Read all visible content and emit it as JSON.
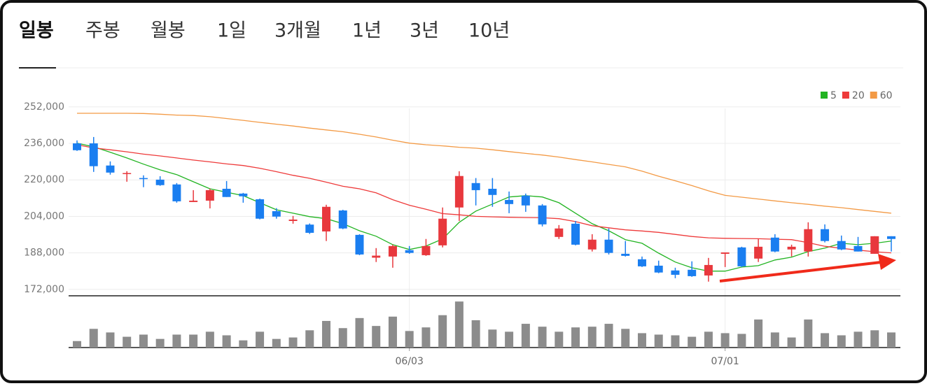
{
  "tabs": [
    "일봉",
    "주봉",
    "월봉",
    "1일",
    "3개월",
    "1년",
    "3년",
    "10년"
  ],
  "chart_data": {
    "type": "candlestick",
    "categories": [
      null,
      null,
      null,
      null,
      null,
      null,
      null,
      null,
      null,
      null,
      null,
      null,
      null,
      null,
      null,
      null,
      null,
      null,
      null,
      null,
      "06/03",
      null,
      null,
      null,
      null,
      null,
      null,
      null,
      null,
      null,
      null,
      null,
      null,
      null,
      null,
      null,
      null,
      null,
      null,
      "07/01",
      null,
      null,
      null,
      null,
      null,
      null,
      null,
      null,
      null,
      null
    ],
    "open": [
      236000,
      236000,
      226300,
      222600,
      220800,
      220100,
      218000,
      210300,
      210900,
      216100,
      214000,
      211500,
      206300,
      202000,
      200400,
      197400,
      206600,
      195900,
      185900,
      186400,
      189200,
      187000,
      191300,
      207900,
      218600,
      216100,
      211200,
      213100,
      208800,
      195000,
      200800,
      189500,
      193800,
      187600,
      185200,
      182400,
      180300,
      180600,
      178100,
      187600,
      190400,
      185500,
      194700,
      189500,
      188600,
      198400,
      193200,
      191000,
      187600,
      195300
    ],
    "high": [
      237300,
      238800,
      228100,
      223800,
      222000,
      221600,
      218600,
      215500,
      216100,
      219500,
      214300,
      211800,
      207600,
      204200,
      200900,
      209100,
      206900,
      196200,
      190100,
      191600,
      191000,
      194100,
      207900,
      223800,
      220800,
      220800,
      214900,
      214000,
      209400,
      200200,
      202000,
      196200,
      198700,
      193200,
      186400,
      184600,
      181500,
      184300,
      185800,
      188200,
      190700,
      194100,
      196200,
      191600,
      201400,
      200500,
      195600,
      195000,
      195300,
      195300
    ],
    "low": [
      232700,
      223500,
      222300,
      219200,
      216800,
      217400,
      210000,
      210300,
      207500,
      212500,
      210000,
      202700,
      203000,
      200800,
      196300,
      193200,
      198400,
      187000,
      184000,
      181500,
      187600,
      186700,
      190400,
      202000,
      208800,
      208200,
      205400,
      206000,
      199600,
      194100,
      191300,
      188600,
      187300,
      186400,
      181800,
      179100,
      176900,
      177500,
      175400,
      181800,
      181800,
      184000,
      188300,
      186400,
      186400,
      192600,
      189200,
      188600,
      187600,
      188600
    ],
    "close": [
      233000,
      226000,
      223200,
      223000,
      220500,
      217700,
      210600,
      210900,
      215500,
      212500,
      212800,
      203000,
      203900,
      202600,
      196800,
      208200,
      198700,
      187300,
      186800,
      191000,
      188000,
      191000,
      203000,
      221700,
      215500,
      213400,
      209400,
      208800,
      200500,
      198700,
      191600,
      193800,
      188000,
      186700,
      182100,
      179400,
      178400,
      177800,
      182700,
      188200,
      182100,
      190700,
      188600,
      190700,
      198400,
      193200,
      189500,
      188600,
      195300,
      194100
    ],
    "up_color": "#e8383d",
    "down_color": "#1a7ef0",
    "moving_averages": [
      {
        "name": "5",
        "color": "#22b422",
        "values": [
          236100,
          234500,
          232100,
          229600,
          226900,
          224400,
          222300,
          219200,
          216100,
          214600,
          213100,
          210000,
          206900,
          205400,
          203900,
          203000,
          200800,
          197700,
          195300,
          191600,
          189500,
          191000,
          194100,
          201400,
          206300,
          209400,
          212500,
          213100,
          212500,
          210000,
          205400,
          200800,
          197700,
          193800,
          192200,
          187900,
          184000,
          181500,
          180000,
          180000,
          181800,
          182400,
          184900,
          186100,
          188600,
          190100,
          192200,
          191600,
          192200,
          193200
        ]
      },
      {
        "name": "20",
        "color": "#ee3a3a",
        "values": [
          235400,
          234000,
          233200,
          232300,
          231300,
          230500,
          229600,
          228700,
          227900,
          227000,
          226300,
          225100,
          223600,
          222000,
          220700,
          219000,
          217200,
          216100,
          214300,
          211300,
          208900,
          207100,
          205200,
          204700,
          204000,
          203800,
          203600,
          203500,
          203400,
          203000,
          201700,
          199900,
          199000,
          198100,
          197600,
          197000,
          196100,
          195200,
          194600,
          194400,
          194300,
          194200,
          194000,
          193800,
          192500,
          190900,
          190000,
          189200,
          188500,
          188000
        ]
      },
      {
        "name": "60",
        "color": "#f39a45",
        "values": [
          249200,
          249200,
          249200,
          249200,
          249100,
          248800,
          248400,
          248200,
          247700,
          246900,
          246100,
          245200,
          244400,
          243600,
          242700,
          241900,
          241100,
          240000,
          238800,
          237400,
          236100,
          235400,
          234900,
          234300,
          233900,
          233200,
          232400,
          231600,
          230900,
          230000,
          228900,
          227900,
          226800,
          225700,
          223800,
          221600,
          219600,
          217500,
          215200,
          213200,
          212400,
          211600,
          210800,
          210000,
          209300,
          208500,
          207800,
          207000,
          206200,
          205400
        ]
      }
    ],
    "volume": {
      "color": "#8c8c8c",
      "ylim": [
        0,
        70
      ],
      "values": [
        9,
        26,
        21,
        15,
        18,
        12,
        18,
        18,
        22,
        17,
        10,
        22,
        12,
        14,
        24,
        37,
        27,
        41,
        30,
        43,
        23,
        28,
        45,
        64,
        38,
        25,
        22,
        33,
        29,
        22,
        28,
        29,
        33,
        26,
        20,
        18,
        17,
        15,
        22,
        20,
        19,
        39,
        21,
        14,
        39,
        20,
        17,
        22,
        24,
        21
      ]
    },
    "ylim": [
      169500,
      263600
    ],
    "yticks": [
      {
        "value": 172000,
        "label": "172,000"
      },
      {
        "value": 188000,
        "label": "188,000"
      },
      {
        "value": 204000,
        "label": "204,000"
      },
      {
        "value": 220000,
        "label": "220,000"
      },
      {
        "value": 236000,
        "label": "236,000"
      },
      {
        "value": 252000,
        "label": "252,000"
      }
    ],
    "grid": true
  }
}
